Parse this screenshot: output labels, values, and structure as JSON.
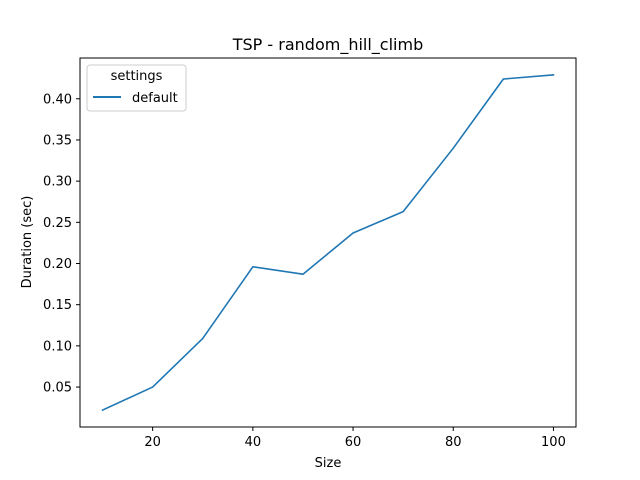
{
  "chart_data": {
    "type": "line",
    "title": "TSP - random_hill_climb",
    "xlabel": "Size",
    "ylabel": "Duration (sec)",
    "xlim": [
      5.5,
      104.5
    ],
    "ylim": [
      0.0015,
      0.4495
    ],
    "xticks": [
      20,
      40,
      60,
      80,
      100
    ],
    "yticks": [
      0.05,
      0.1,
      0.15,
      0.2,
      0.25,
      0.3,
      0.35,
      0.4
    ],
    "ytick_labels": [
      "0.05",
      "0.10",
      "0.15",
      "0.20",
      "0.25",
      "0.30",
      "0.35",
      "0.40"
    ],
    "grid": false,
    "legend": {
      "title": "settings",
      "placement": "upper-left"
    },
    "series": [
      {
        "name": "default",
        "color": "#1f77b4",
        "x": [
          10,
          20,
          30,
          40,
          50,
          60,
          70,
          80,
          90,
          100
        ],
        "y": [
          0.022,
          0.05,
          0.109,
          0.196,
          0.187,
          0.237,
          0.263,
          0.34,
          0.424,
          0.429
        ]
      }
    ]
  }
}
